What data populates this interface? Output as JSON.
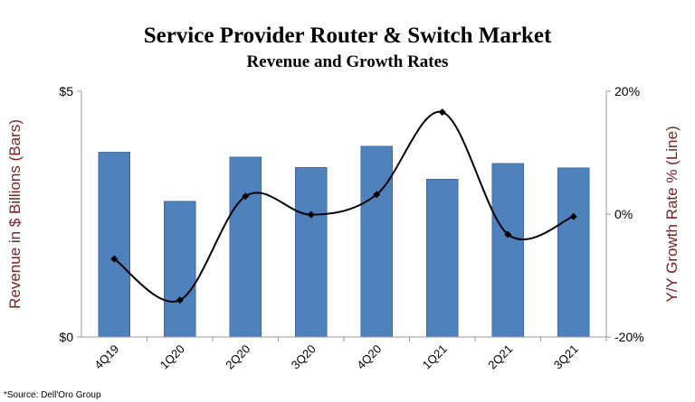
{
  "chart_data": {
    "type": "bar+line",
    "title": "Service Provider Router & Switch Market",
    "subtitle": "Revenue and Growth Rates",
    "categories": [
      "4Q19",
      "1Q20",
      "2Q20",
      "3Q20",
      "4Q20",
      "1Q21",
      "2Q21",
      "3Q21"
    ],
    "series": [
      {
        "name": "Bars",
        "type": "bar",
        "axis": "left",
        "values": [
          3.76,
          2.76,
          3.66,
          3.45,
          3.88,
          3.21,
          3.53,
          3.44
        ]
      },
      {
        "name": "Line",
        "type": "line",
        "axis": "right",
        "smooth": true,
        "values": [
          -7.3,
          -14.0,
          2.9,
          -0.1,
          3.2,
          16.6,
          -3.3,
          -0.4
        ]
      }
    ],
    "ylabel": "Revenue in $ Billions (Bars)",
    "y2label": "Y/Y Growth Rate % (Line)",
    "ylim": [
      0,
      5
    ],
    "y2lim": [
      -20,
      20
    ],
    "yticks": [
      "$0",
      "$5"
    ],
    "y2ticks": [
      "-20%",
      "0%",
      "20%"
    ],
    "grid": false,
    "legend": "none",
    "colors": {
      "bar": "#4f81bd",
      "line": "#000000",
      "axis_label": "#7b1f1f"
    },
    "source": "*Source: Dell'Oro Group"
  }
}
